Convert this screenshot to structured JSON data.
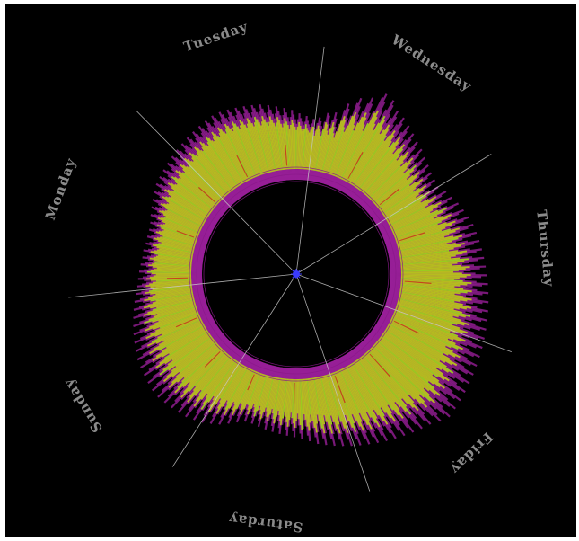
{
  "chart_data": {
    "type": "radial-bar",
    "title": "",
    "days": [
      "Wednesday",
      "Thursday",
      "Friday",
      "Saturday",
      "Sunday",
      "Monday",
      "Tuesday"
    ],
    "grid": true,
    "colors": {
      "background": "#000000",
      "spoke": "#c8c8c8",
      "ring": "#8a1a8a",
      "bar_primary": "#b8c41a",
      "bar_secondary": "#9bd41a",
      "bar_outline": "#a020a0",
      "accent": "#c83a1a",
      "center": "#3b3bff",
      "label": "#8a8a8a"
    },
    "series": [
      {
        "values": [
          0.46,
          0.43,
          0.5,
          0.55,
          0.52,
          0.48,
          0.44,
          0.52,
          0.6,
          0.58,
          0.51,
          0.47,
          0.55,
          0.62,
          0.57,
          0.5,
          0.45,
          0.53,
          0.66,
          0.72,
          0.68,
          0.6,
          0.55,
          0.63,
          0.75,
          0.8,
          0.73,
          0.66,
          0.6,
          0.7,
          0.78,
          0.84,
          0.79,
          0.71,
          0.64,
          0.74,
          0.88,
          0.92,
          0.85,
          0.77,
          0.7,
          0.8,
          0.9,
          0.86,
          0.78,
          0.7,
          0.76,
          0.84,
          0.79,
          0.72,
          0.66,
          0.74,
          0.82,
          0.77,
          0.7,
          0.63,
          0.71,
          0.79,
          0.74,
          0.67,
          0.6,
          0.68,
          0.76,
          0.71,
          0.64,
          0.57,
          0.65,
          0.73,
          0.68,
          0.61,
          0.55,
          0.63,
          0.71,
          0.66,
          0.59,
          0.52,
          0.6,
          0.68,
          0.63,
          0.56,
          0.5,
          0.58,
          0.66,
          0.61,
          0.54,
          0.48,
          0.56,
          0.64,
          0.59,
          0.52,
          0.47,
          0.55,
          0.63,
          0.58,
          0.51,
          0.46,
          0.54,
          0.62,
          0.57,
          0.5,
          0.48,
          0.57,
          0.66,
          0.61,
          0.54,
          0.5,
          0.59,
          0.68,
          0.63,
          0.56,
          0.52,
          0.61,
          0.71,
          0.66,
          0.58,
          0.53,
          0.63,
          0.73,
          0.68,
          0.6,
          0.55,
          0.65,
          0.75,
          0.7,
          0.62,
          0.57,
          0.67,
          0.77,
          0.72,
          0.64,
          0.58,
          0.68,
          0.78,
          0.73,
          0.65,
          0.59,
          0.69,
          0.79,
          0.74,
          0.66,
          0.6,
          0.7,
          0.8,
          0.75,
          0.67,
          0.61,
          0.71,
          0.81,
          0.76,
          0.68,
          0.62,
          0.72,
          0.82,
          0.77,
          0.69,
          0.63,
          0.73,
          0.83,
          0.78,
          0.7,
          0.64,
          0.74,
          0.84,
          0.79,
          0.71,
          0.65,
          0.75,
          0.85,
          0.8,
          0.72,
          0.66,
          0.76,
          0.86,
          0.81,
          0.73,
          0.67,
          0.77,
          0.87,
          0.82,
          0.74,
          0.68,
          0.78,
          0.88,
          0.83,
          0.75,
          0.69,
          0.79,
          0.89,
          0.84,
          0.76,
          0.7,
          0.8,
          0.9,
          0.85,
          0.77,
          0.71,
          0.81,
          0.91,
          0.86,
          0.78,
          0.72,
          0.82,
          0.92,
          0.87,
          0.79,
          0.73,
          0.83,
          0.93,
          0.88,
          0.8,
          0.74,
          0.84,
          0.94,
          0.89,
          0.81,
          0.75,
          0.85,
          0.95,
          0.9,
          0.82,
          0.76,
          0.86,
          0.96,
          0.91,
          0.83,
          0.77,
          0.87,
          0.97,
          0.92,
          0.84,
          0.78,
          0.88,
          0.98,
          0.93,
          0.85,
          0.79,
          0.89,
          0.99,
          0.94,
          0.86,
          0.8,
          0.9,
          0.96,
          0.88,
          0.8,
          0.72,
          0.82,
          0.92,
          0.86,
          0.78,
          0.7,
          0.8,
          0.9,
          0.84,
          0.76,
          0.68,
          0.78,
          0.88,
          0.82,
          0.74,
          0.66,
          0.76,
          0.86,
          0.8,
          0.72,
          0.64,
          0.74,
          0.84,
          0.78,
          0.7,
          0.62,
          0.72,
          0.82,
          0.76,
          0.68,
          0.6,
          0.7,
          0.8,
          0.74,
          0.66,
          0.58,
          0.68,
          0.78,
          0.72,
          0.64,
          0.56,
          0.66,
          0.76,
          0.7,
          0.62,
          0.54,
          0.64,
          0.74,
          0.68,
          0.6,
          0.52,
          0.62,
          0.72,
          0.66,
          0.58,
          0.5,
          0.6,
          0.7,
          0.64,
          0.56,
          0.48,
          0.58,
          0.68,
          0.62,
          0.54,
          0.46,
          0.56,
          0.66,
          0.6,
          0.52,
          0.45,
          0.54,
          0.63,
          0.58,
          0.5,
          0.44,
          0.52,
          0.61,
          0.56,
          0.49,
          0.43,
          0.51,
          0.59,
          0.54,
          0.48,
          0.42,
          0.5,
          0.58,
          0.53,
          0.47,
          0.41,
          0.49,
          0.57,
          0.52,
          0.46,
          0.41,
          0.48,
          0.56,
          0.51,
          0.45,
          0.4,
          0.47,
          0.55,
          0.5,
          0.44,
          0.4,
          0.46,
          0.54,
          0.49,
          0.44,
          0.4,
          0.46,
          0.53,
          0.48,
          0.43,
          0.4,
          0.46,
          0.53,
          0.48,
          0.43,
          0.42,
          0.49,
          0.56,
          0.51,
          0.45,
          0.44,
          0.52,
          0.6,
          0.55,
          0.48,
          0.46,
          0.55,
          0.64,
          0.58,
          0.51,
          0.48,
          0.57,
          0.67,
          0.61,
          0.54,
          0.5,
          0.59,
          0.7,
          0.64,
          0.56,
          0.52,
          0.61,
          0.72,
          0.66,
          0.58,
          0.54,
          0.63,
          0.74,
          0.68,
          0.6,
          0.55,
          0.64,
          0.75,
          0.69,
          0.61,
          0.56,
          0.65,
          0.76,
          0.7,
          0.62,
          0.57,
          0.66,
          0.77,
          0.71,
          0.63,
          0.58,
          0.67,
          0.78,
          0.72,
          0.64,
          0.58,
          0.67,
          0.78,
          0.72,
          0.64,
          0.57,
          0.66,
          0.77,
          0.71,
          0.63,
          0.56,
          0.65,
          0.76,
          0.7,
          0.62,
          0.55,
          0.64,
          0.75,
          0.69,
          0.61,
          0.54,
          0.63,
          0.74,
          0.68,
          0.6,
          0.53,
          0.62,
          0.72,
          0.66,
          0.58,
          0.52,
          0.6,
          0.7,
          0.64,
          0.57,
          0.51,
          0.59,
          0.68,
          0.62,
          0.55,
          0.5,
          0.57,
          0.66,
          0.6,
          0.54,
          0.49,
          0.56,
          0.64,
          0.59,
          0.53,
          0.48,
          0.55,
          0.62,
          0.57,
          0.51,
          0.47,
          0.53,
          0.6,
          0.55,
          0.5,
          0.46,
          0.52,
          0.58,
          0.53,
          0.49,
          0.45,
          0.51,
          0.56,
          0.52,
          0.48,
          0.44,
          0.5,
          0.55,
          0.51,
          0.47,
          0.44,
          0.49,
          0.54,
          0.5,
          0.46,
          0.43,
          0.48,
          0.53,
          0.49,
          0.46,
          0.43,
          0.47,
          0.52,
          0.48,
          0.45,
          0.43,
          0.47,
          0.52,
          0.48,
          0.45,
          0.43,
          0.46,
          0.51,
          0.48,
          0.45,
          0.42,
          0.46,
          0.51,
          0.48,
          0.45,
          0.42,
          0.46,
          0.51,
          0.48,
          0.45,
          0.43,
          0.47,
          0.52,
          0.49,
          0.46,
          0.44,
          0.48,
          0.54,
          0.51,
          0.48,
          0.46,
          0.5,
          0.56,
          0.53,
          0.5,
          0.48,
          0.52,
          0.58,
          0.55,
          0.52,
          0.5,
          0.54,
          0.6,
          0.57,
          0.54,
          0.52,
          0.56,
          0.62,
          0.59,
          0.55,
          0.53,
          0.57,
          0.63,
          0.6,
          0.56,
          0.54,
          0.58,
          0.64,
          0.61,
          0.57,
          0.55,
          0.59,
          0.65,
          0.62,
          0.58,
          0.56,
          0.6,
          0.66,
          0.63,
          0.59,
          0.57,
          0.61,
          0.67,
          0.64,
          0.6,
          0.58,
          0.62,
          0.68,
          0.65,
          0.61,
          0.59,
          0.63,
          0.69,
          0.66,
          0.62,
          0.6,
          0.64,
          0.7,
          0.67,
          0.63,
          0.61,
          0.65,
          0.71,
          0.68,
          0.64,
          0.62,
          0.66,
          0.72,
          0.69,
          0.65,
          0.63,
          0.67,
          0.73,
          0.7,
          0.66,
          0.63,
          0.67,
          0.73,
          0.7,
          0.66,
          0.62,
          0.66,
          0.72,
          0.69,
          0.65,
          0.61,
          0.65,
          0.71,
          0.68,
          0.64,
          0.6,
          0.64,
          0.7,
          0.67,
          0.63,
          0.59,
          0.63,
          0.69,
          0.66,
          0.62,
          0.58,
          0.62,
          0.68,
          0.64,
          0.6,
          0.56,
          0.6,
          0.66,
          0.62,
          0.58,
          0.54,
          0.58,
          0.64,
          0.6,
          0.56,
          0.52,
          0.56,
          0.62,
          0.58,
          0.54,
          0.5,
          0.54,
          0.6,
          0.56,
          0.52,
          0.48,
          0.52,
          0.57,
          0.53,
          0.5,
          0.47,
          0.5,
          0.55,
          0.51,
          0.48,
          0.46,
          0.49,
          0.53
        ]
      }
    ]
  }
}
